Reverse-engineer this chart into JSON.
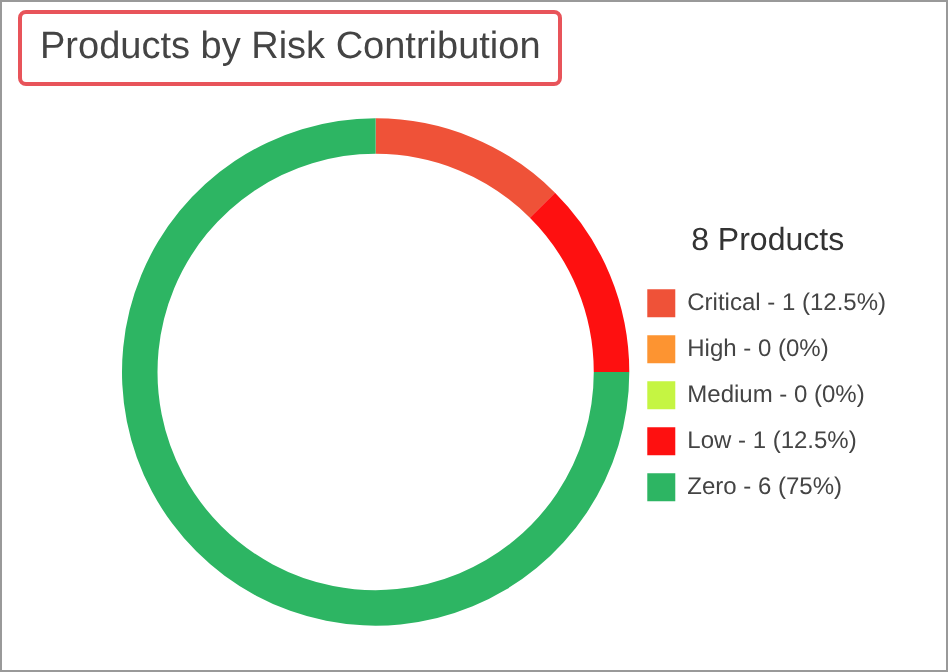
{
  "chart_data": {
    "type": "donut",
    "title": "Products by Risk Contribution",
    "legend_title": "8 Products",
    "categories": [
      "Critical - 1 (12.5%)",
      "High - 0 (0%)",
      "Medium - 0 (0%)",
      "Low - 1 (12.5%)",
      "Zero - 6 (75%)"
    ],
    "values": [
      12.5,
      0,
      0,
      12.5,
      75
    ],
    "colors": [
      "#ef5238",
      "#fd9431",
      "#c5f542",
      "#fe1010",
      "#2db563"
    ],
    "legend": "right"
  }
}
